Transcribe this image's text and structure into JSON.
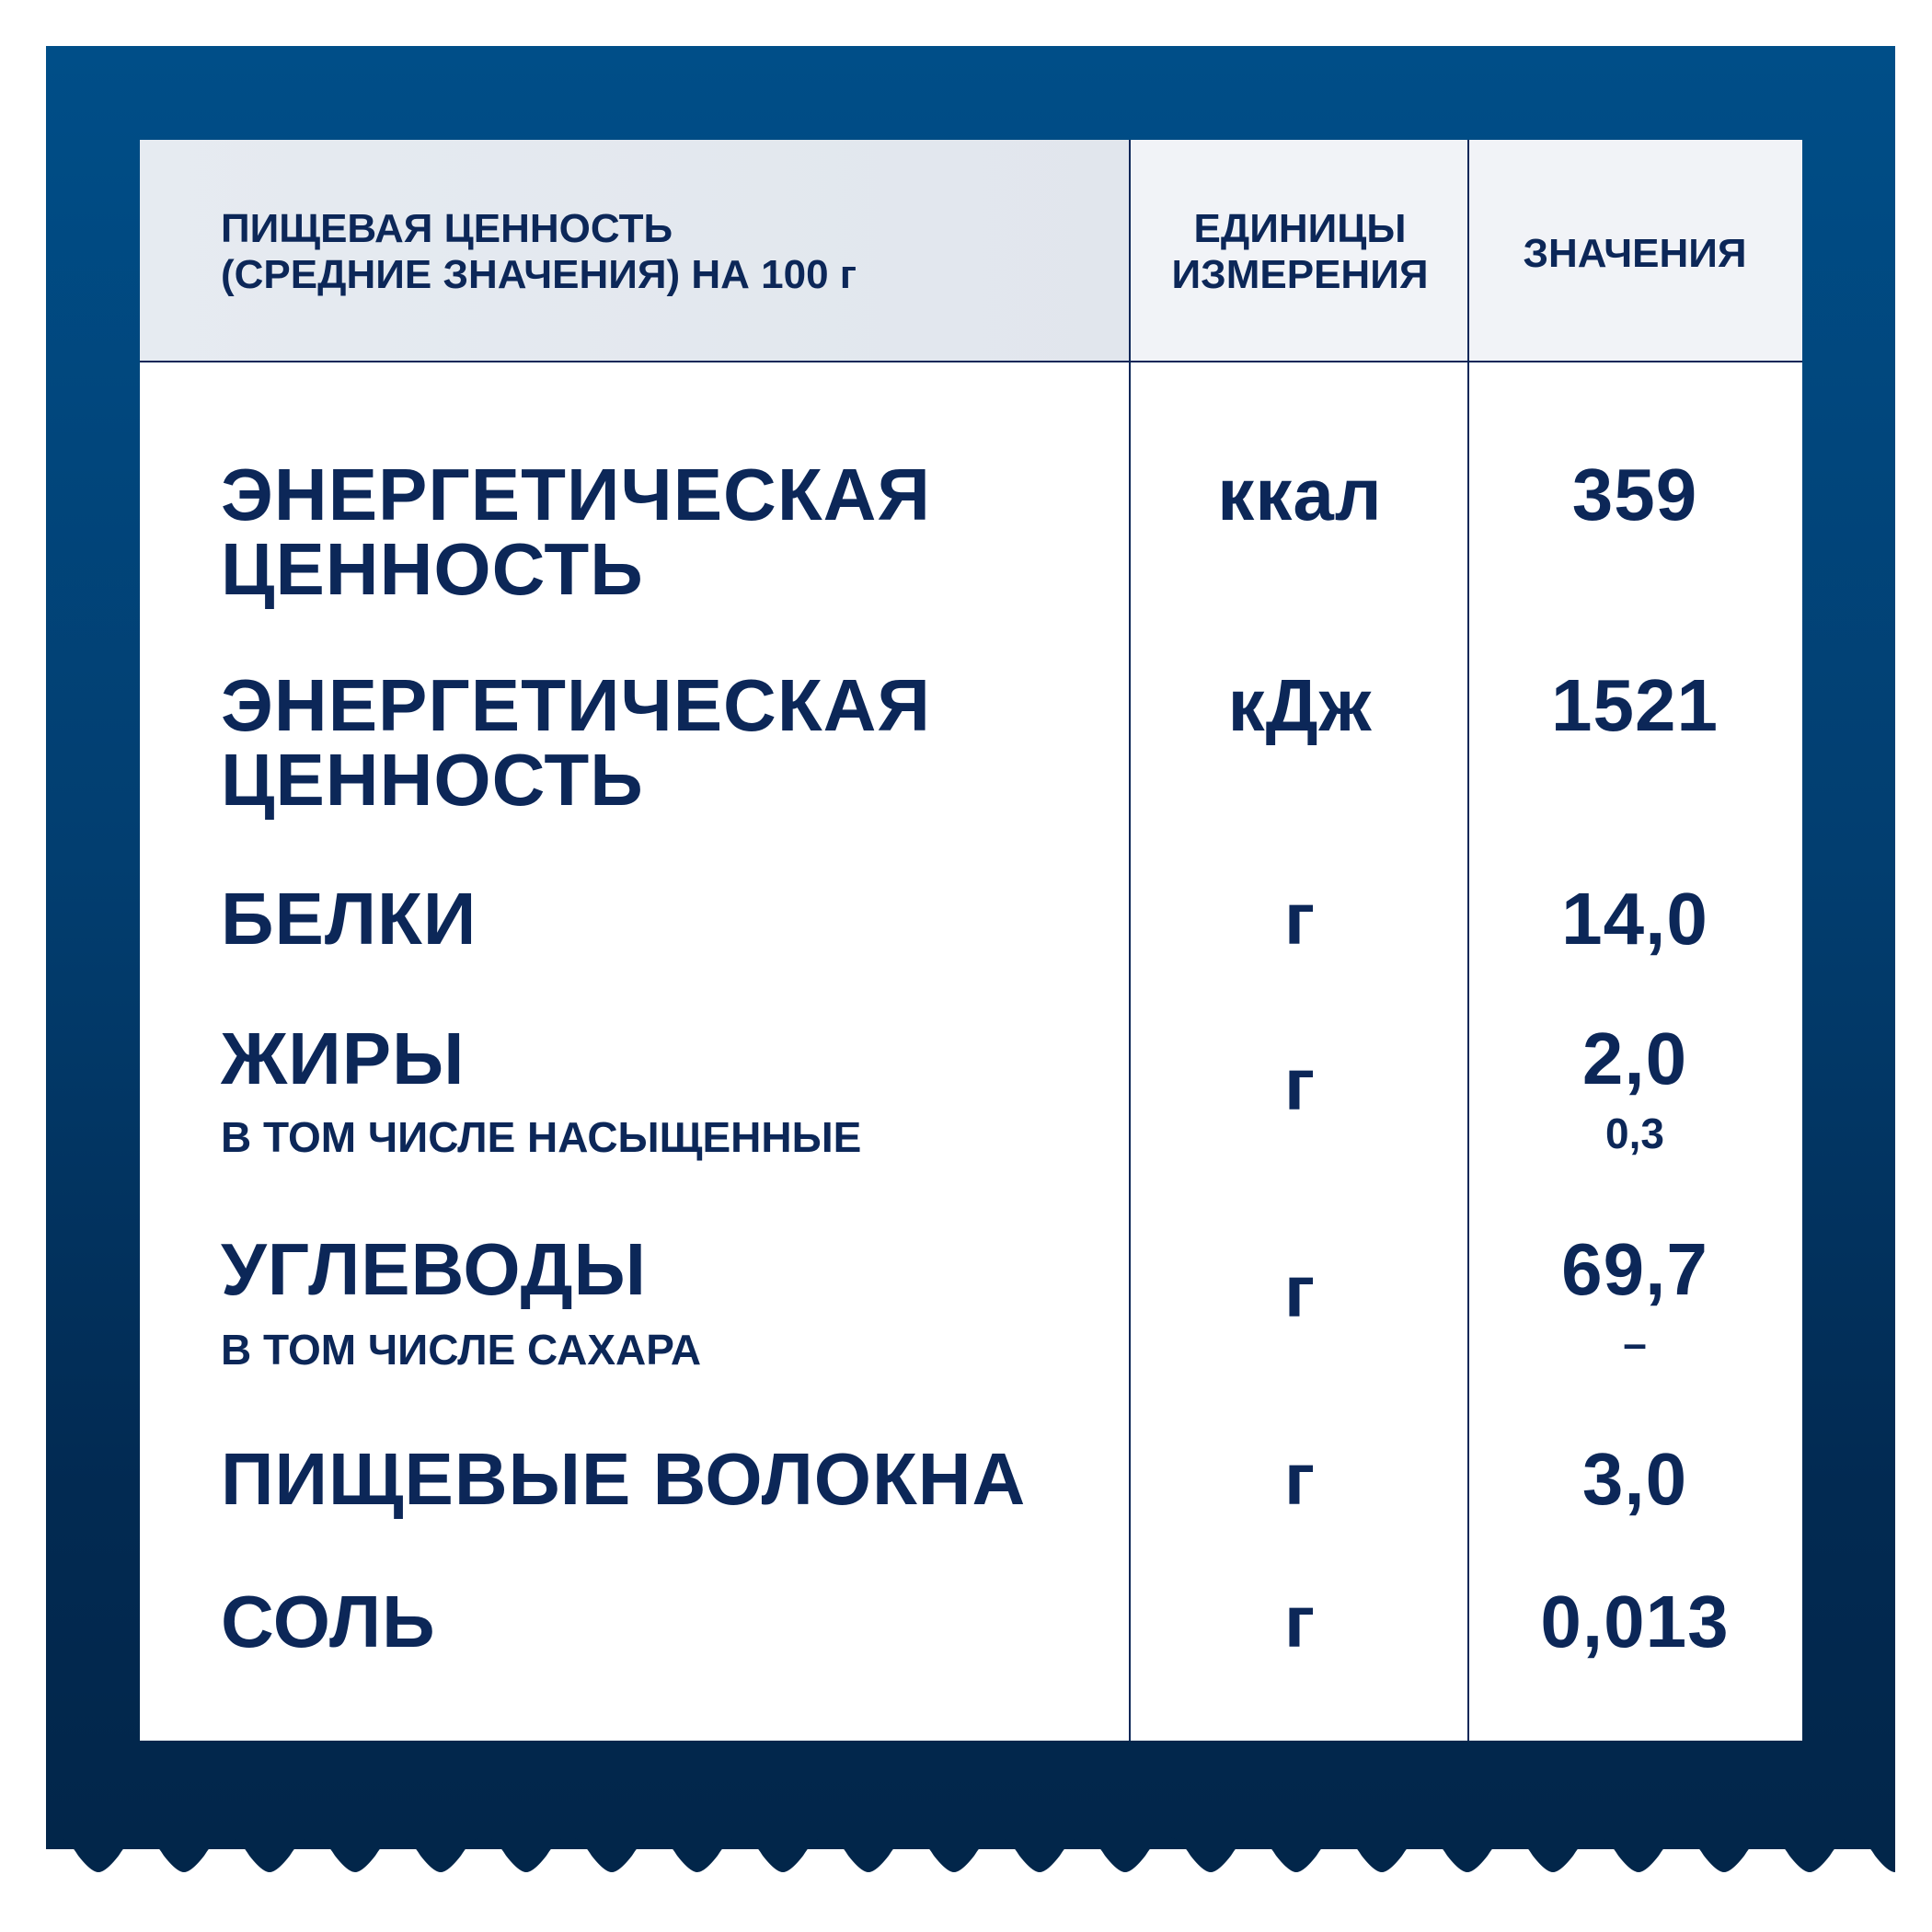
{
  "colors": {
    "frame_top": "#004e88",
    "frame_bottom": "#02264a",
    "text": "#0c2758",
    "header_left": "#e3e8ef",
    "header_right": "#f1f3f7"
  },
  "header": {
    "nutrition": "ПИЩЕВАЯ ЦЕННОСТЬ\n(СРЕДНИЕ ЗНАЧЕНИЯ) НА 100 г",
    "units": "ЕДИНИЦЫ\nИЗМЕРЕНИЯ",
    "values": "ЗНАЧЕНИЯ"
  },
  "rows": [
    {
      "label": "ЭНЕРГЕТИЧЕСКАЯ\nЦЕННОСТЬ",
      "unit": "ккал",
      "value": "359"
    },
    {
      "label": "ЭНЕРГЕТИЧЕСКАЯ\nЦЕННОСТЬ",
      "unit": "кДж",
      "value": "1521"
    },
    {
      "label": "БЕЛКИ",
      "unit": "г",
      "value": "14,0"
    },
    {
      "label": "ЖИРЫ",
      "sublabel": "В ТОМ ЧИСЛЕ НАСЫЩЕННЫЕ",
      "unit": "г",
      "value": "2,0",
      "subvalue": "0,3"
    },
    {
      "label": "УГЛЕВОДЫ",
      "sublabel": "В ТОМ ЧИСЛЕ САХАРА",
      "unit": "г",
      "value": "69,7",
      "subvalue": "–"
    },
    {
      "label": "ПИЩЕВЫЕ ВОЛОКНА",
      "unit": "г",
      "value": "3,0"
    },
    {
      "label": "СОЛЬ",
      "unit": "г",
      "value": "0,013"
    }
  ]
}
